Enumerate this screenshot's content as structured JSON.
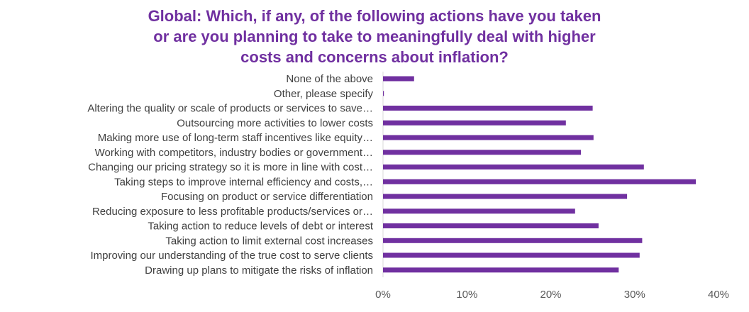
{
  "chart_data": {
    "type": "bar",
    "orientation": "horizontal",
    "title_lines": [
      "Global: Which, if any, of the following actions have you taken",
      "or are you planning to take to meaningfully deal with higher",
      "costs and concerns about inflation?"
    ],
    "categories": [
      "None of the above",
      "Other, please specify",
      "Altering the quality or scale of products or services to save…",
      "Outsourcing more activities to lower costs",
      "Making more use of long-term staff incentives like equity…",
      "Working with competitors, industry bodies or government…",
      "Changing our pricing strategy so it is more in line with cost…",
      "Taking steps to improve internal efficiency and costs,…",
      "Focusing on product or service differentiation",
      "Reducing exposure to less profitable products/services or…",
      "Taking action to reduce levels of debt or interest",
      "Taking action to limit external cost increases",
      "Improving our understanding of the true cost to serve clients",
      "Drawing up plans to mitigate the risks of inflation"
    ],
    "values": [
      3.7,
      0.1,
      25.0,
      21.8,
      25.1,
      23.6,
      31.1,
      37.3,
      29.1,
      22.9,
      25.7,
      30.9,
      30.6,
      28.1
    ],
    "xlim": [
      0,
      40
    ],
    "ticks": [
      "0%",
      "10%",
      "20%",
      "30%",
      "40%"
    ],
    "tick_values": [
      0,
      10,
      20,
      30,
      40
    ],
    "bar_color": "#7030a0",
    "grid": false,
    "legend": "none"
  }
}
